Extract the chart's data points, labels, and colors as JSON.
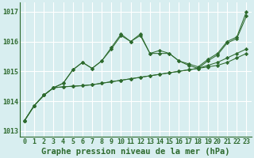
{
  "background_color": "#d8eef0",
  "grid_color": "#ffffff",
  "line_color": "#2d6a2d",
  "xlabel": "Graphe pression niveau de la mer (hPa)",
  "xlabel_fontsize": 7.5,
  "tick_fontsize": 6.0,
  "xlim": [
    -0.5,
    23.5
  ],
  "ylim": [
    1012.8,
    1017.3
  ],
  "yticks": [
    1013,
    1014,
    1015,
    1016,
    1017
  ],
  "xticks": [
    0,
    1,
    2,
    3,
    4,
    5,
    6,
    7,
    8,
    9,
    10,
    11,
    12,
    13,
    14,
    15,
    16,
    17,
    18,
    19,
    20,
    21,
    22,
    23
  ],
  "series": [
    [
      1013.35,
      1013.85,
      1014.2,
      1014.45,
      1014.48,
      1014.5,
      1014.52,
      1014.55,
      1014.6,
      1014.65,
      1014.7,
      1014.75,
      1014.8,
      1014.85,
      1014.9,
      1014.95,
      1015.0,
      1015.05,
      1015.1,
      1015.15,
      1015.2,
      1015.3,
      1015.45,
      1015.6
    ],
    [
      1013.35,
      1013.85,
      1014.2,
      1014.45,
      1014.48,
      1014.5,
      1014.52,
      1014.55,
      1014.6,
      1014.65,
      1014.7,
      1014.75,
      1014.8,
      1014.85,
      1014.9,
      1014.95,
      1015.0,
      1015.05,
      1015.1,
      1015.2,
      1015.3,
      1015.45,
      1015.6,
      1015.75
    ],
    [
      1013.35,
      1013.85,
      1014.2,
      1014.45,
      1014.6,
      1015.05,
      1015.3,
      1015.1,
      1015.35,
      1015.75,
      1016.2,
      1016.0,
      1016.2,
      1015.6,
      1015.6,
      1015.6,
      1015.35,
      1015.2,
      1015.1,
      1015.35,
      1015.55,
      1015.95,
      1016.1,
      1016.85
    ],
    [
      1013.35,
      1013.85,
      1014.2,
      1014.45,
      1014.6,
      1015.05,
      1015.3,
      1015.1,
      1015.35,
      1015.8,
      1016.25,
      1016.0,
      1016.25,
      1015.6,
      1015.7,
      1015.6,
      1015.35,
      1015.25,
      1015.15,
      1015.4,
      1015.6,
      1016.0,
      1016.15,
      1017.0
    ]
  ]
}
